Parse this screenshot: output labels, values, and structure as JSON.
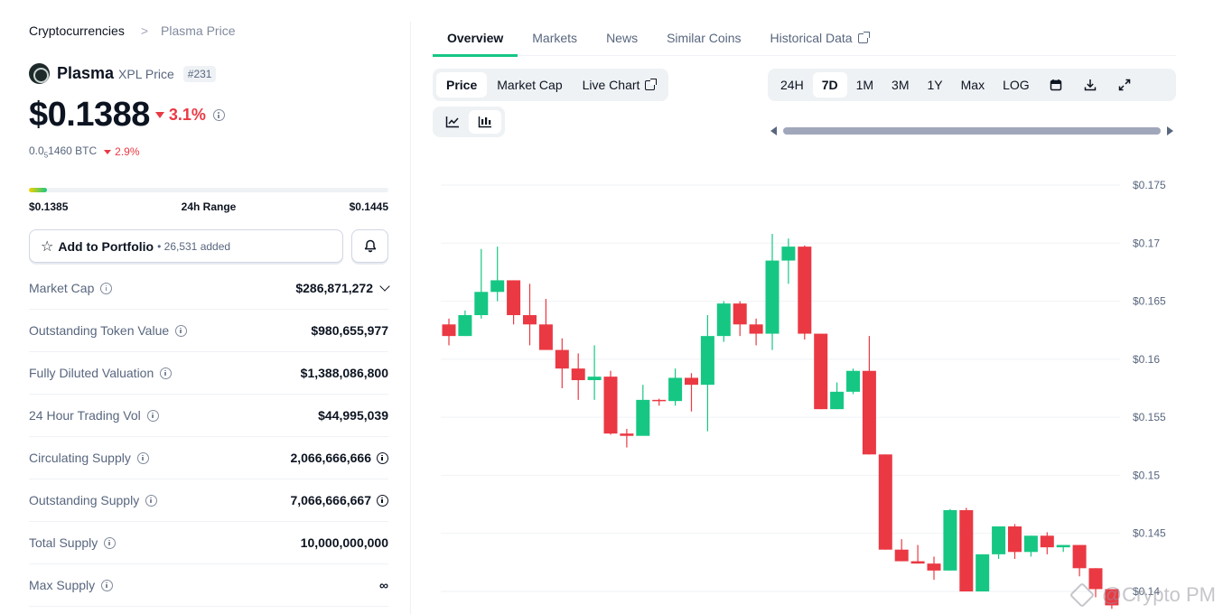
{
  "breadcrumb": {
    "root": "Cryptocurrencies",
    "current": "Plasma Price"
  },
  "coin": {
    "name": "Plasma",
    "symbol_label": "XPL Price",
    "rank": "#231"
  },
  "price": {
    "usd": "$0.1388",
    "change_24h": "3.1%",
    "btc_prefix": "0.0",
    "btc_sub": "5",
    "btc_rest": "1460 BTC",
    "btc_change": "2.9%"
  },
  "range": {
    "low": "$0.1385",
    "label": "24h Range",
    "high": "$0.1445",
    "position_fraction": 0.05
  },
  "portfolio": {
    "label": "Add to Portfolio",
    "added": "26,531 added"
  },
  "stats": [
    {
      "label": "Market Cap",
      "value": "$286,871,272"
    },
    {
      "label": "Outstanding Token Value",
      "value": "$980,655,977"
    },
    {
      "label": "Fully Diluted Valuation",
      "value": "$1,388,086,800"
    },
    {
      "label": "24 Hour Trading Vol",
      "value": "$44,995,039"
    },
    {
      "label": "Circulating Supply",
      "value": "2,066,666,666"
    },
    {
      "label": "Outstanding Supply",
      "value": "7,066,666,667"
    },
    {
      "label": "Total Supply",
      "value": "10,000,000,000"
    },
    {
      "label": "Max Supply",
      "value": "∞"
    }
  ],
  "tabs": [
    "Overview",
    "Markets",
    "News",
    "Similar Coins",
    "Historical Data"
  ],
  "chart_type_tabs": [
    "Price",
    "Market Cap",
    "Live Chart"
  ],
  "range_tabs": [
    "24H",
    "7D",
    "1M",
    "3M",
    "1Y",
    "Max",
    "LOG"
  ],
  "watermark": "@Crypto PM",
  "colors": {
    "up": "#16c784",
    "down": "#ea3943",
    "accent": "#16c784"
  },
  "chart_data": {
    "type": "candlestick",
    "y_ticks": [
      "$0.175",
      "$0.17",
      "$0.165",
      "$0.16",
      "$0.155",
      "$0.15",
      "$0.145",
      "$0.14"
    ],
    "ylim": [
      0.1385,
      0.1768
    ],
    "grid": true,
    "candles": [
      [
        0.163,
        0.1635,
        0.162,
        0.1612
      ],
      [
        0.162,
        0.1642,
        0.1638,
        0.162
      ],
      [
        0.1638,
        0.1695,
        0.1658,
        0.1635
      ],
      [
        0.1658,
        0.1697,
        0.1668,
        0.165
      ],
      [
        0.1668,
        0.1668,
        0.1638,
        0.163
      ],
      [
        0.1638,
        0.1665,
        0.163,
        0.1612
      ],
      [
        0.163,
        0.1652,
        0.1608,
        0.1608
      ],
      [
        0.1608,
        0.1618,
        0.1592,
        0.1575
      ],
      [
        0.1592,
        0.1605,
        0.1582,
        0.1565
      ],
      [
        0.1582,
        0.1612,
        0.1585,
        0.1565
      ],
      [
        0.1585,
        0.159,
        0.1536,
        0.1535
      ],
      [
        0.1536,
        0.154,
        0.1534,
        0.1524
      ],
      [
        0.1534,
        0.1578,
        0.1565,
        0.1535
      ],
      [
        0.1565,
        0.1566,
        0.1564,
        0.156
      ],
      [
        0.1564,
        0.1592,
        0.1584,
        0.156
      ],
      [
        0.1584,
        0.1588,
        0.1578,
        0.1555
      ],
      [
        0.1578,
        0.1638,
        0.162,
        0.1538
      ],
      [
        0.162,
        0.165,
        0.1648,
        0.1615
      ],
      [
        0.1648,
        0.165,
        0.163,
        0.162
      ],
      [
        0.163,
        0.1635,
        0.1622,
        0.1612
      ],
      [
        0.1622,
        0.1708,
        0.1685,
        0.1608
      ],
      [
        0.1685,
        0.1704,
        0.1697,
        0.1665
      ],
      [
        0.1697,
        0.1698,
        0.1622,
        0.1617
      ],
      [
        0.1622,
        0.1622,
        0.1557,
        0.1557
      ],
      [
        0.1557,
        0.158,
        0.1572,
        0.1557
      ],
      [
        0.1572,
        0.1592,
        0.159,
        0.157
      ],
      [
        0.159,
        0.162,
        0.1518,
        0.1518
      ],
      [
        0.1518,
        0.1518,
        0.1436,
        0.1436
      ],
      [
        0.1436,
        0.1445,
        0.1426,
        0.1426
      ],
      [
        0.1426,
        0.144,
        0.1424,
        0.1424
      ],
      [
        0.1424,
        0.143,
        0.1418,
        0.141
      ],
      [
        0.1418,
        0.1471,
        0.147,
        0.1418
      ],
      [
        0.147,
        0.1472,
        0.14,
        0.14
      ],
      [
        0.14,
        0.1425,
        0.1432,
        0.14
      ],
      [
        0.1432,
        0.1456,
        0.1456,
        0.1428
      ],
      [
        0.1456,
        0.1458,
        0.1434,
        0.1428
      ],
      [
        0.1434,
        0.1448,
        0.1448,
        0.143
      ],
      [
        0.1448,
        0.1451,
        0.1438,
        0.1432
      ],
      [
        0.1438,
        0.144,
        0.144,
        0.1434
      ],
      [
        0.144,
        0.144,
        0.142,
        0.1413
      ],
      [
        0.142,
        0.142,
        0.1402,
        0.1395
      ],
      [
        0.1402,
        0.1402,
        0.1388,
        0.1385
      ]
    ]
  }
}
